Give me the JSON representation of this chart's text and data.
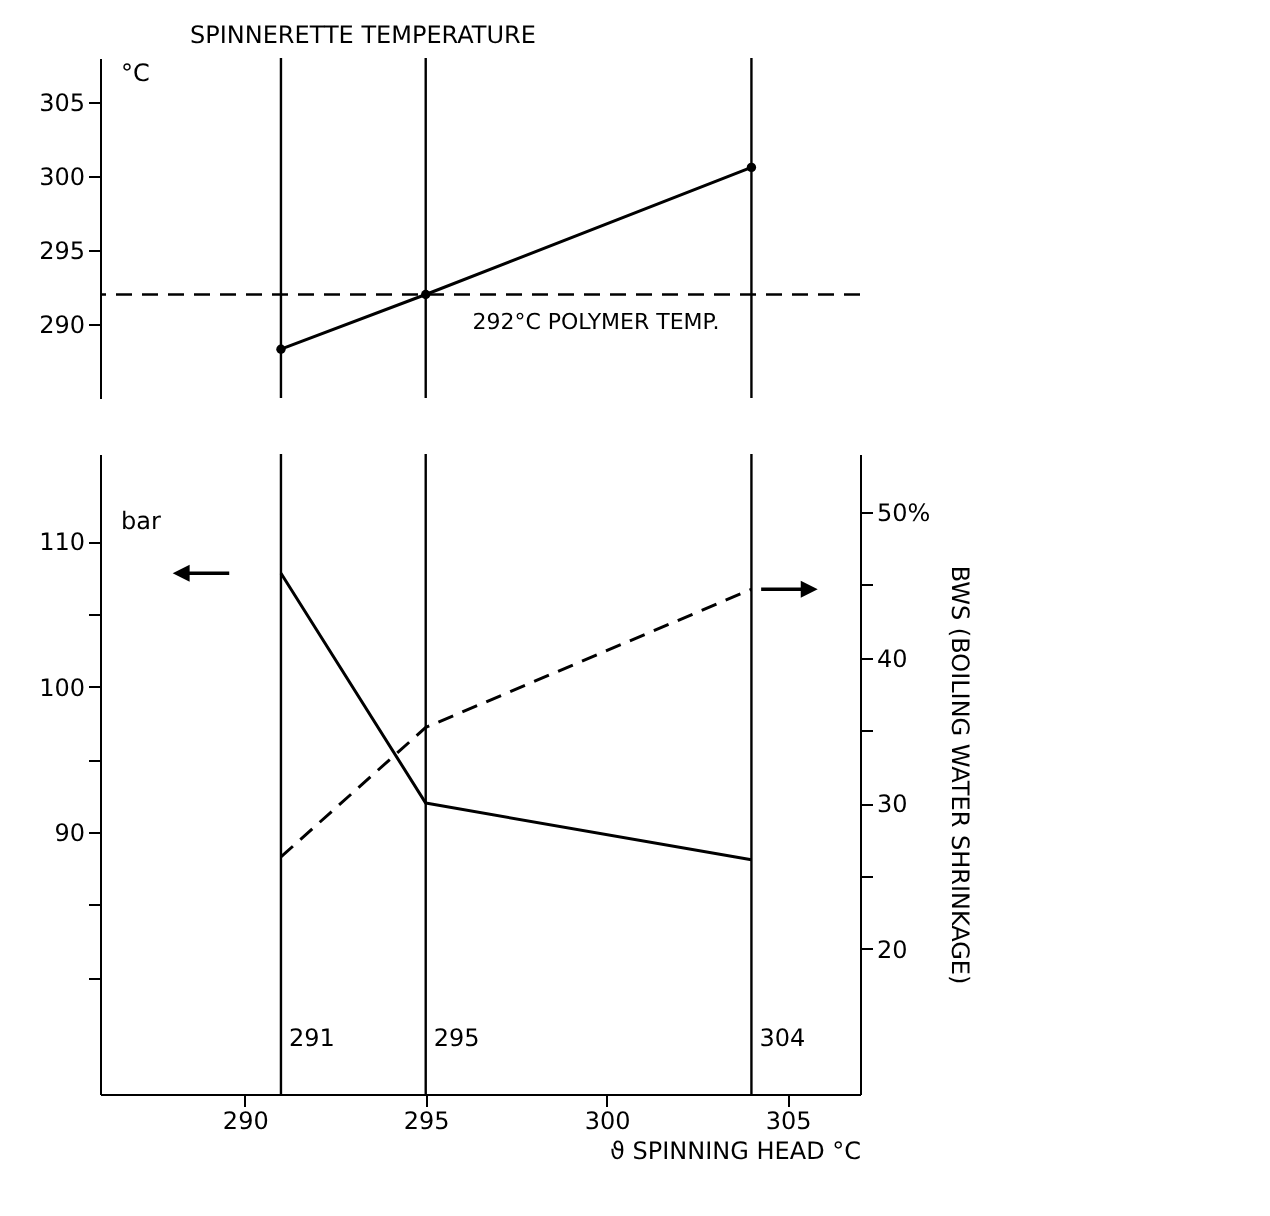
{
  "chart_data": [
    {
      "type": "line",
      "title": "SPINNERETTE TEMPERATURE",
      "ylabel": "°C",
      "x": [
        291,
        295,
        304
      ],
      "series": [
        {
          "color": "#000000",
          "values": [
            288.3,
            292,
            300.6
          ]
        }
      ],
      "xlim": [
        286,
        307
      ],
      "ylim": [
        285,
        308
      ],
      "yticks": [
        290,
        295,
        300,
        305
      ],
      "marker": "circle",
      "tick_labels": "y",
      "ref_lines": [
        {
          "axis": "y",
          "value": 292,
          "label": "292°C POLYMER TEMP.",
          "line_style": "dashed",
          "color": "#000000"
        },
        {
          "axis": "x",
          "value": 291,
          "label": null,
          "color": "#000000"
        },
        {
          "axis": "x",
          "value": 295,
          "label": null,
          "color": "#000000"
        },
        {
          "axis": "x",
          "value": 304,
          "label": null,
          "color": "#000000"
        }
      ]
    },
    {
      "type": "line",
      "xlabel": "ϑ SPINNING HEAD °C",
      "ylabel": "bar",
      "y2label": "BWS (BOILING WATER SHRINKAGE)",
      "x": [
        291,
        295,
        304
      ],
      "series": [
        {
          "color": "#000000",
          "values": [
            107.8,
            92,
            88.1
          ],
          "line_style": "solid"
        },
        {
          "color": "#000000",
          "values": [
            26.3,
            35.2,
            44.7
          ],
          "axis": "y2",
          "line_style": "dashed"
        }
      ],
      "xlim": [
        286,
        307
      ],
      "xticks": [
        290,
        295,
        300,
        305
      ],
      "ylim": [
        72,
        116
      ],
      "yticks": [
        {
          "value": 80,
          "label": null
        },
        {
          "value": 85,
          "label": null
        },
        90,
        {
          "value": 95,
          "label": null
        },
        100,
        {
          "value": 105,
          "label": null
        },
        110
      ],
      "y2lim": [
        10,
        54
      ],
      "y2ticks": [
        20,
        {
          "value": 25,
          "label": null
        },
        30,
        {
          "value": 35,
          "label": null
        },
        40,
        {
          "value": 45,
          "label": null
        },
        {
          "value": 50,
          "label": "50%"
        }
      ],
      "ref_lines": [
        {
          "axis": "x",
          "value": 291,
          "label": "291",
          "color": "#000000"
        },
        {
          "axis": "x",
          "value": 295,
          "label": "295",
          "color": "#000000"
        },
        {
          "axis": "x",
          "value": 304,
          "label": "304",
          "color": "#000000"
        }
      ]
    }
  ]
}
